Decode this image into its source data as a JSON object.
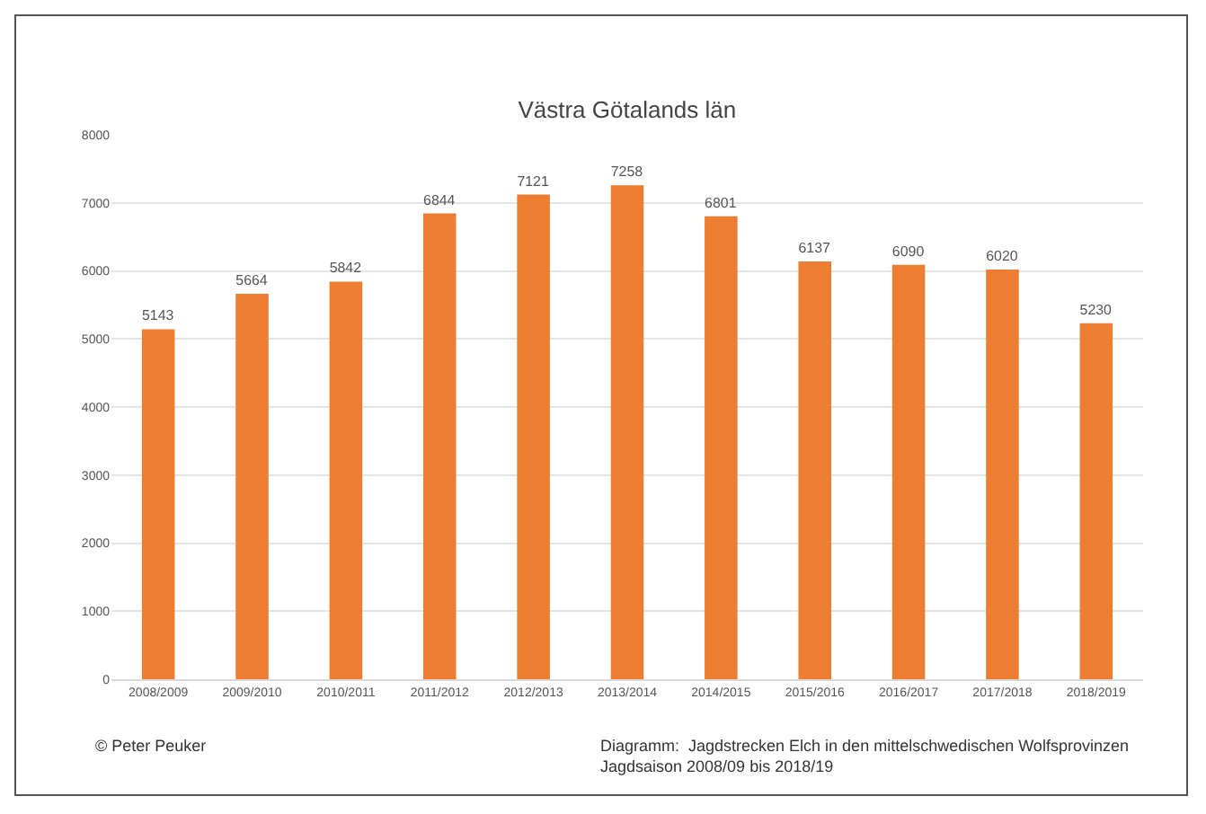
{
  "chart_data": {
    "type": "bar",
    "title": "Västra Götalands län",
    "categories": [
      "2008/2009",
      "2009/2010",
      "2010/2011",
      "2011/2012",
      "2012/2013",
      "2013/2014",
      "2014/2015",
      "2015/2016",
      "2016/2017",
      "2017/2018",
      "2018/2019"
    ],
    "values": [
      5143,
      5664,
      5842,
      6844,
      7121,
      7258,
      6801,
      6137,
      6090,
      6020,
      5230
    ],
    "color": "#ed7d31",
    "ylim": [
      0,
      8000
    ],
    "yticks": [
      0,
      1000,
      2000,
      3000,
      4000,
      5000,
      6000,
      7000,
      8000
    ],
    "grid": "y",
    "data_labels": true,
    "annotations": [
      "© Peter Peuker",
      "Diagramm:  Jagdstrecken Elch in den mittelschwedischen Wolfsprovinzen\nJagdsaison 2008/09 bis 2018/19"
    ]
  }
}
